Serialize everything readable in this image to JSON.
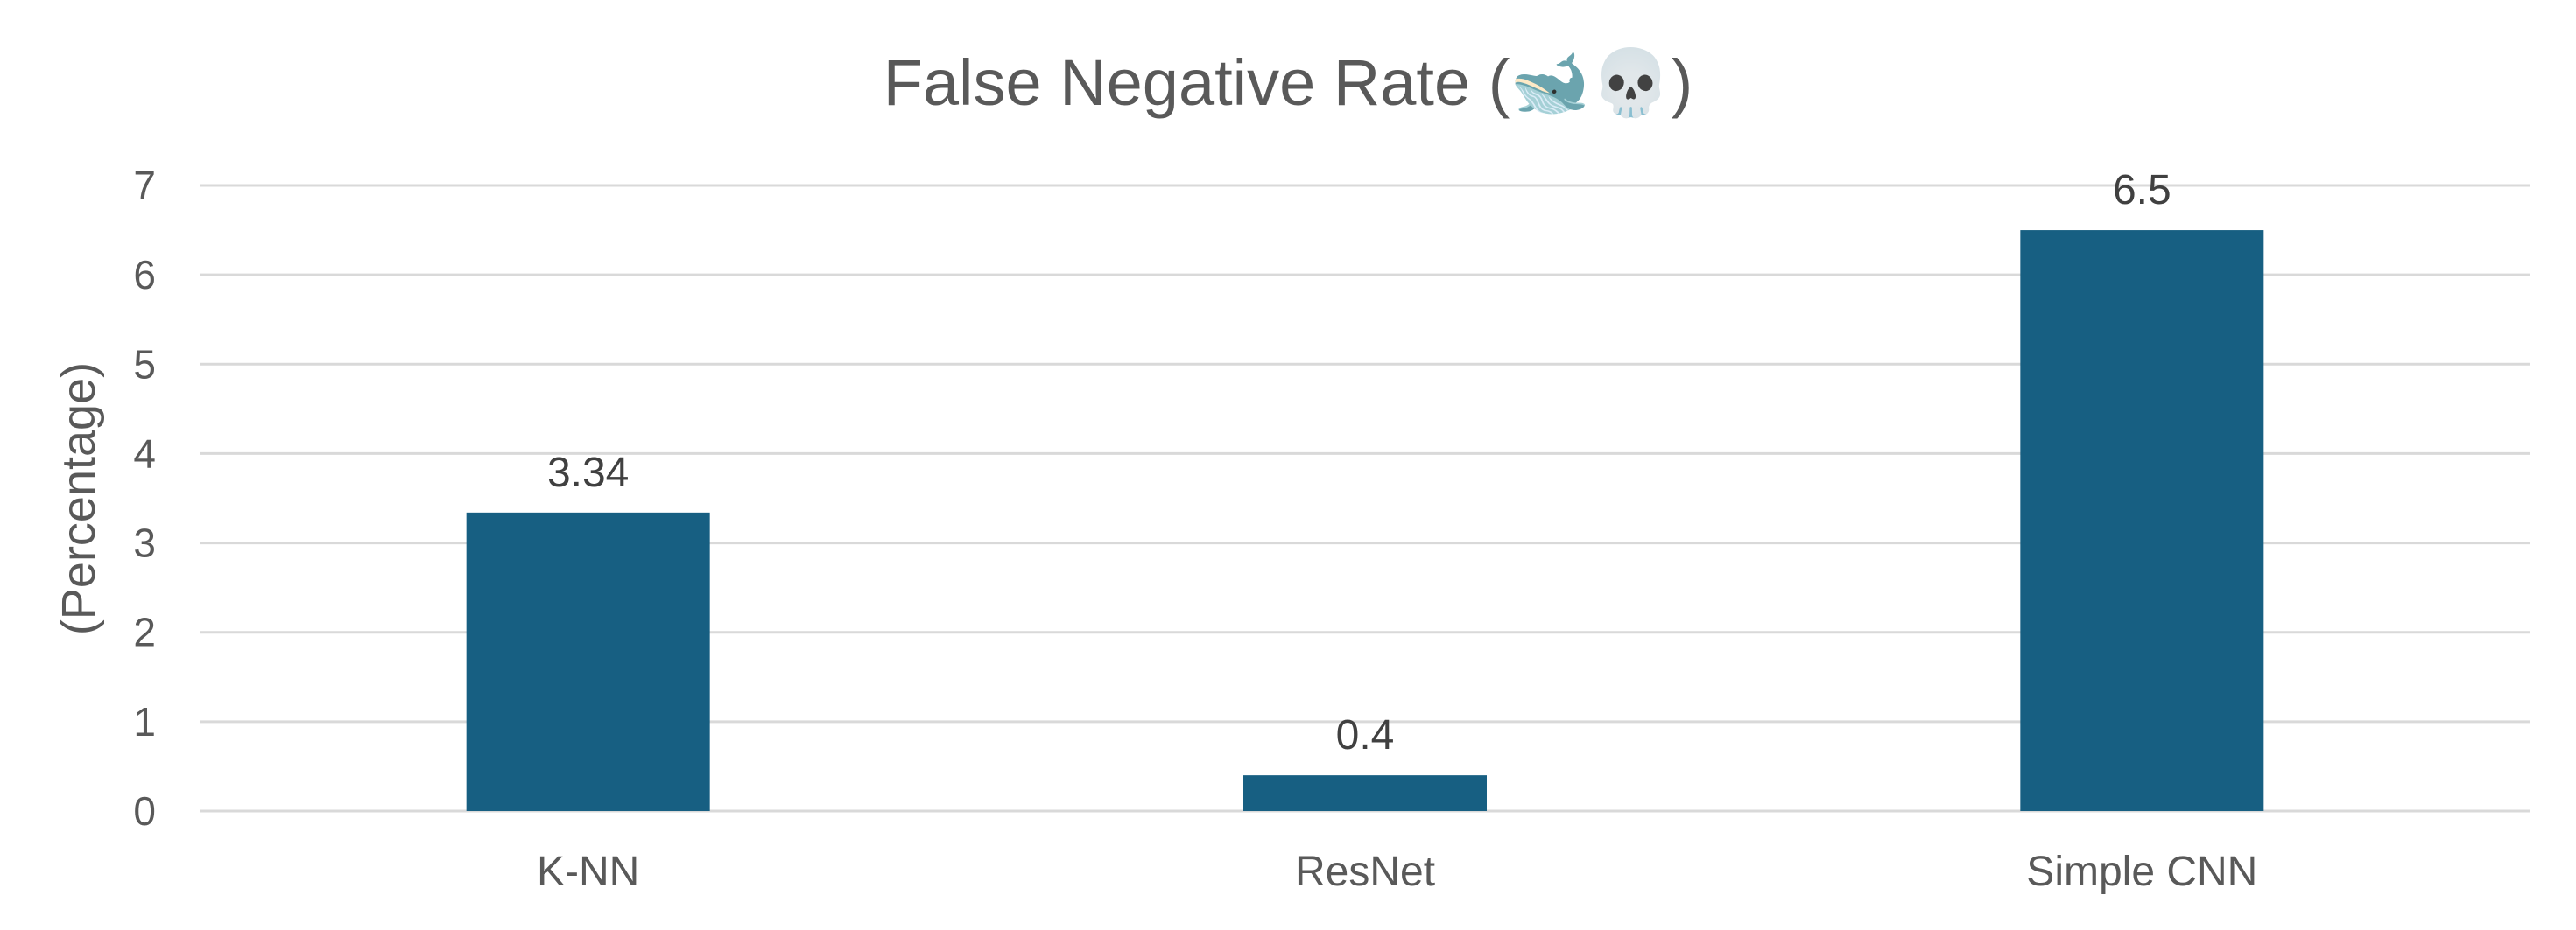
{
  "chart_data": {
    "type": "bar",
    "title": "False Negative Rate (🐋💀)",
    "xlabel": "",
    "ylabel": "(Percentage)",
    "categories": [
      "K-NN",
      "ResNet",
      "Simple CNN"
    ],
    "values": [
      3.34,
      0.4,
      6.5
    ],
    "data_labels": [
      "3.34",
      "0.4",
      "6.5"
    ],
    "ylim": [
      0,
      7
    ],
    "yticks": [
      0,
      1,
      2,
      3,
      4,
      5,
      6,
      7
    ],
    "grid": true,
    "legend": "none",
    "colors": {
      "bar": "#175F82"
    }
  }
}
